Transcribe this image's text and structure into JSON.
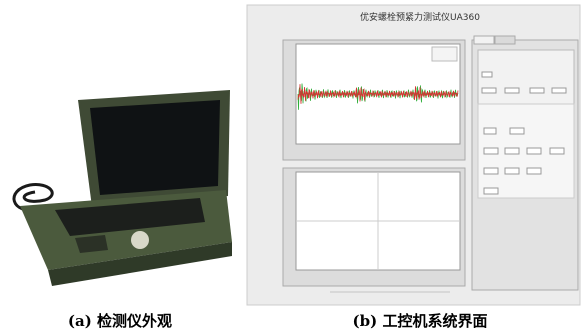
{
  "figure": {
    "panels": [
      {
        "caption": "(a) 检测仪外观"
      },
      {
        "caption": "(b) 工控机系统界面",
        "window_title": "优安螺栓预紧力测试仪UA360"
      }
    ]
  }
}
